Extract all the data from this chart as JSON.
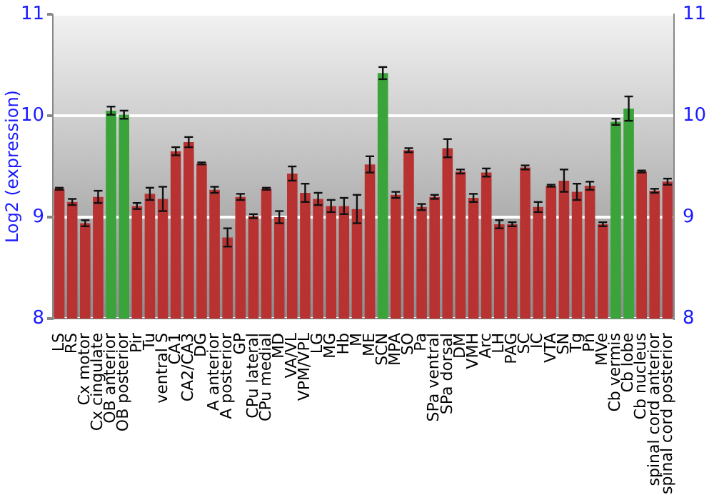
{
  "chart_data": {
    "type": "bar",
    "ylabel": "Log2 (expression)",
    "categories": [
      "LS",
      "RS",
      "Cx motor",
      "Cx cingulate",
      "OB anterior",
      "OB posterior",
      "Pir",
      "Tu",
      "ventral S",
      "CA1",
      "CA2/CA3",
      "DG",
      "A anterior",
      "A posterior",
      "GP",
      "CPu lateral",
      "CPu medial",
      "MD",
      "VA/VL",
      "VPM/VPL",
      "LG",
      "MG",
      "Hb",
      "M",
      "ME",
      "SCN",
      "MPA",
      "SO",
      "Pa",
      "SPa ventral",
      "SPa dorsal",
      "DM",
      "VMH",
      "Arc",
      "LH",
      "PAG",
      "SC",
      "IC",
      "VTA",
      "SN",
      "Tg",
      "Pn",
      "MVe",
      "Cb vermis",
      "Cb lobe",
      "Cb nucleus",
      "spinal cord anterior",
      "spinal cord posterior"
    ],
    "values": [
      9.28,
      9.15,
      8.94,
      9.2,
      10.05,
      10.01,
      9.11,
      9.23,
      9.18,
      9.65,
      9.74,
      9.53,
      9.27,
      8.8,
      9.2,
      9.01,
      9.28,
      9.0,
      9.43,
      9.24,
      9.18,
      9.11,
      9.11,
      9.08,
      9.52,
      10.42,
      9.22,
      9.66,
      9.1,
      9.2,
      9.68,
      9.45,
      9.19,
      9.44,
      8.93,
      8.93,
      9.49,
      9.1,
      9.31,
      9.36,
      9.25,
      9.31,
      8.93,
      9.94,
      10.07,
      9.45,
      9.26,
      9.35
    ],
    "errors": [
      0.01,
      0.03,
      0.03,
      0.06,
      0.04,
      0.04,
      0.03,
      0.06,
      0.12,
      0.04,
      0.05,
      0.01,
      0.03,
      0.09,
      0.03,
      0.02,
      0.01,
      0.06,
      0.07,
      0.09,
      0.06,
      0.06,
      0.08,
      0.14,
      0.08,
      0.06,
      0.03,
      0.02,
      0.03,
      0.02,
      0.09,
      0.02,
      0.04,
      0.04,
      0.04,
      0.02,
      0.02,
      0.05,
      0.01,
      0.11,
      0.08,
      0.04,
      0.02,
      0.03,
      0.12,
      0.01,
      0.02,
      0.03
    ],
    "colors": [
      "#b83232",
      "#b83232",
      "#b83232",
      "#b83232",
      "#3aa43a",
      "#3aa43a",
      "#b83232",
      "#b83232",
      "#b83232",
      "#b83232",
      "#b83232",
      "#b83232",
      "#b83232",
      "#b83232",
      "#b83232",
      "#b83232",
      "#b83232",
      "#b83232",
      "#b83232",
      "#b83232",
      "#b83232",
      "#b83232",
      "#b83232",
      "#b83232",
      "#b83232",
      "#3aa43a",
      "#b83232",
      "#b83232",
      "#b83232",
      "#b83232",
      "#b83232",
      "#b83232",
      "#b83232",
      "#b83232",
      "#b83232",
      "#b83232",
      "#b83232",
      "#b83232",
      "#b83232",
      "#b83232",
      "#b83232",
      "#b83232",
      "#b83232",
      "#3aa43a",
      "#3aa43a",
      "#b83232",
      "#b83232",
      "#b83232"
    ],
    "ylim": [
      8,
      11
    ],
    "yticks": [
      8,
      9,
      10,
      11
    ],
    "y2lim": [
      8,
      11
    ],
    "y2ticks": [
      8,
      9,
      10,
      11
    ],
    "grid": "y",
    "legend": false
  }
}
